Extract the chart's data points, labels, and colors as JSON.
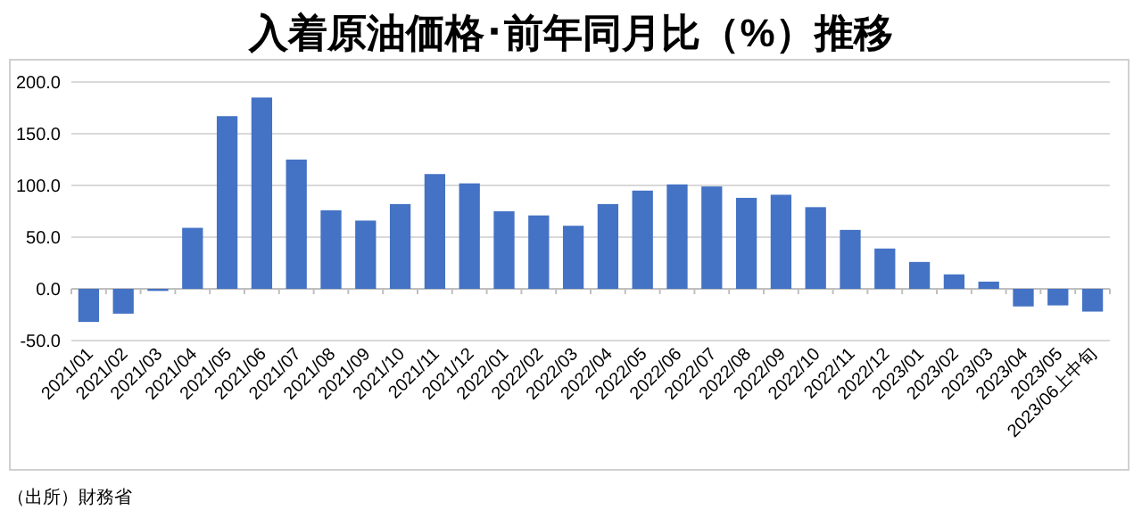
{
  "chart_data": {
    "type": "bar",
    "title": "入着原油価格･前年同月比（%）推移",
    "categories": [
      "2021/01",
      "2021/02",
      "2021/03",
      "2021/04",
      "2021/05",
      "2021/06",
      "2021/07",
      "2021/08",
      "2021/09",
      "2021/10",
      "2021/11",
      "2021/12",
      "2022/01",
      "2022/02",
      "2022/03",
      "2022/04",
      "2022/05",
      "2022/06",
      "2022/07",
      "2022/08",
      "2022/09",
      "2022/10",
      "2022/11",
      "2022/12",
      "2023/01",
      "2023/02",
      "2023/03",
      "2023/04",
      "2023/05",
      "2023/06上中旬"
    ],
    "values": [
      -32,
      -24,
      -2,
      59,
      167,
      185,
      125,
      76,
      66,
      82,
      111,
      102,
      75,
      71,
      61,
      82,
      95,
      101,
      99,
      88,
      91,
      79,
      57,
      39,
      26,
      14,
      7,
      -17,
      -16,
      -22
    ],
    "color": "#4472c4",
    "ylim": [
      -50,
      200
    ],
    "yticks": [
      {
        "value": -50,
        "label": "-50.0"
      },
      {
        "value": 0,
        "label": "0.0"
      },
      {
        "value": 50,
        "label": "50.0"
      },
      {
        "value": 100,
        "label": "100.0"
      },
      {
        "value": 150,
        "label": "150.0"
      },
      {
        "value": 200,
        "label": "200.0"
      }
    ],
    "grid": "y",
    "annotations": [
      "（出所）財務省"
    ]
  }
}
